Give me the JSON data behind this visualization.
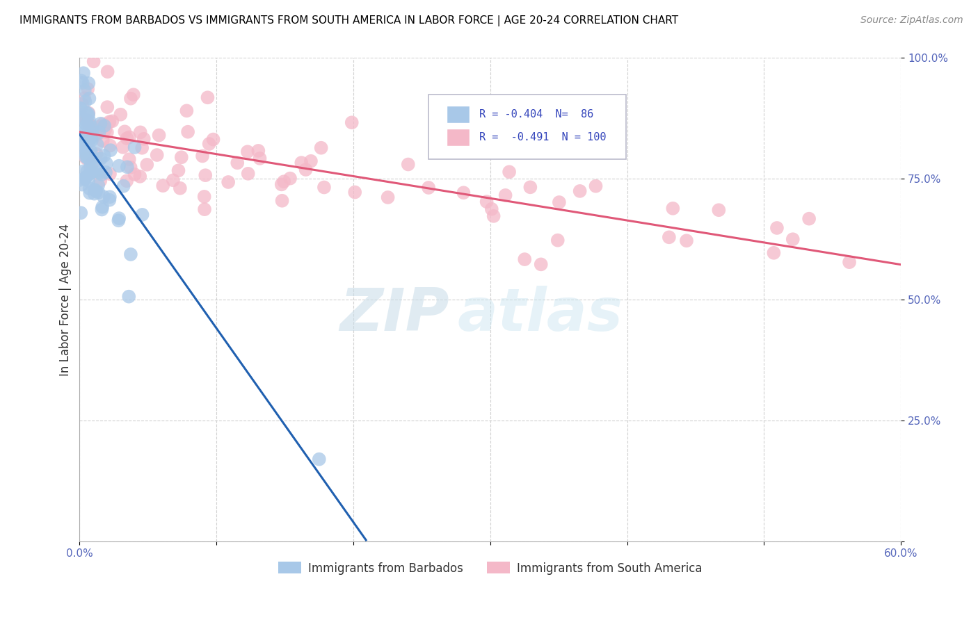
{
  "title": "IMMIGRANTS FROM BARBADOS VS IMMIGRANTS FROM SOUTH AMERICA IN LABOR FORCE | AGE 20-24 CORRELATION CHART",
  "source": "Source: ZipAtlas.com",
  "ylabel": "In Labor Force | Age 20-24",
  "xlim": [
    0.0,
    0.6
  ],
  "ylim": [
    0.0,
    1.0
  ],
  "xtick_vals": [
    0.0,
    0.1,
    0.2,
    0.3,
    0.4,
    0.5,
    0.6
  ],
  "xticklabels": [
    "0.0%",
    "",
    "",
    "",
    "",
    "",
    "60.0%"
  ],
  "ytick_vals": [
    0.0,
    0.25,
    0.5,
    0.75,
    1.0
  ],
  "yticklabels": [
    "",
    "25.0%",
    "50.0%",
    "75.0%",
    "100.0%"
  ],
  "barbados_R": -0.404,
  "barbados_N": 86,
  "south_america_R": -0.491,
  "south_america_N": 100,
  "barbados_color": "#a8c8e8",
  "south_america_color": "#f4b8c8",
  "barbados_line_color": "#2060b0",
  "south_america_line_color": "#e05878",
  "legend_label_1": "Immigrants from Barbados",
  "legend_label_2": "Immigrants from South America",
  "title_fontsize": 11,
  "source_fontsize": 10,
  "tick_fontsize": 11,
  "ylabel_fontsize": 12
}
